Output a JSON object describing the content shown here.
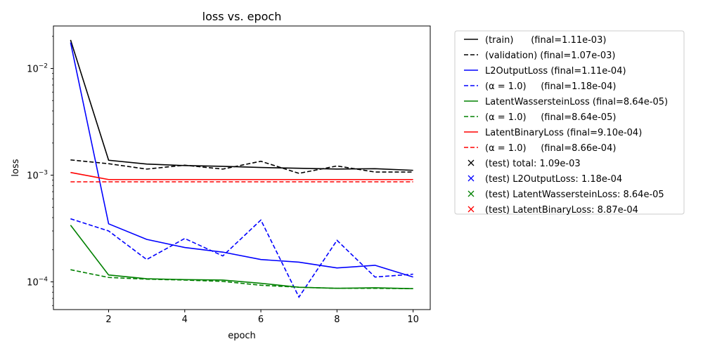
{
  "chart_data": {
    "type": "line",
    "title": "loss vs. epoch",
    "xlabel": "epoch",
    "ylabel": "loss",
    "yscale": "log",
    "xlim": [
      0.55,
      10.45
    ],
    "ylim": [
      5.5e-05,
      0.025
    ],
    "xticks": [
      2,
      4,
      6,
      8,
      10
    ],
    "yticks": [
      {
        "value": 0.0001,
        "base": "10",
        "exp": "−4"
      },
      {
        "value": 0.001,
        "base": "10",
        "exp": "−3"
      },
      {
        "value": 0.01,
        "base": "10",
        "exp": "−2"
      }
    ],
    "grid": false,
    "legend_position": "outside-right",
    "x": [
      1,
      2,
      3,
      4,
      5,
      6,
      7,
      8,
      9,
      10
    ],
    "series": [
      {
        "name": "(train)      (final=1.11e-03)",
        "color": "#000000",
        "dash": "solid",
        "values": [
          0.0185,
          0.00138,
          0.00127,
          0.00123,
          0.00121,
          0.00118,
          0.00116,
          0.00114,
          0.00115,
          0.00111
        ]
      },
      {
        "name": "(validation) (final=1.07e-03)",
        "color": "#000000",
        "dash": "dashed",
        "values": [
          0.00139,
          0.00128,
          0.00114,
          0.00124,
          0.00114,
          0.00135,
          0.00104,
          0.00122,
          0.00107,
          0.00107
        ]
      },
      {
        "name": "L2OutputLoss (final=1.11e-04)",
        "color": "#0000ff",
        "dash": "solid",
        "values": [
          0.0175,
          0.00035,
          0.00025,
          0.00021,
          0.00019,
          0.000162,
          0.000153,
          0.000135,
          0.000143,
          0.000111
        ]
      },
      {
        "name": "(α = 1.0)     (final=1.18e-04)",
        "color": "#0000ff",
        "dash": "dashed",
        "values": [
          0.00039,
          0.0003,
          0.000162,
          0.000255,
          0.000175,
          0.00038,
          7.2e-05,
          0.000245,
          0.000111,
          0.000118
        ]
      },
      {
        "name": "LatentWassersteinLoss (final=8.64e-05)",
        "color": "#008000",
        "dash": "solid",
        "values": [
          0.00034,
          0.000116,
          0.000107,
          0.000105,
          0.000104,
          9.7e-05,
          8.9e-05,
          8.7e-05,
          8.8e-05,
          8.64e-05
        ]
      },
      {
        "name": "(α = 1.0)     (final=8.64e-05)",
        "color": "#008000",
        "dash": "dashed",
        "values": [
          0.00013,
          0.00011,
          0.000106,
          0.000104,
          0.000101,
          9.3e-05,
          8.9e-05,
          8.7e-05,
          8.7e-05,
          8.64e-05
        ]
      },
      {
        "name": "LatentBinaryLoss (final=9.10e-04)",
        "color": "#ff0000",
        "dash": "solid",
        "values": [
          0.00106,
          0.00091,
          0.00091,
          0.00091,
          0.00091,
          0.00091,
          0.00091,
          0.00091,
          0.00091,
          0.00091
        ]
      },
      {
        "name": "(α = 1.0)     (final=8.66e-04)",
        "color": "#ff0000",
        "dash": "dashed",
        "values": [
          0.000866,
          0.000866,
          0.000866,
          0.000866,
          0.000866,
          0.000866,
          0.000866,
          0.000866,
          0.000866,
          0.000866
        ]
      }
    ],
    "test_markers": [
      {
        "name": "(test) total: 1.09e-03",
        "color": "#000000"
      },
      {
        "name": "(test) L2OutputLoss: 1.18e-04",
        "color": "#0000ff"
      },
      {
        "name": "(test) LatentWassersteinLoss: 8.64e-05",
        "color": "#008000"
      },
      {
        "name": "(test) LatentBinaryLoss: 8.87e-04",
        "color": "#ff0000"
      }
    ]
  }
}
